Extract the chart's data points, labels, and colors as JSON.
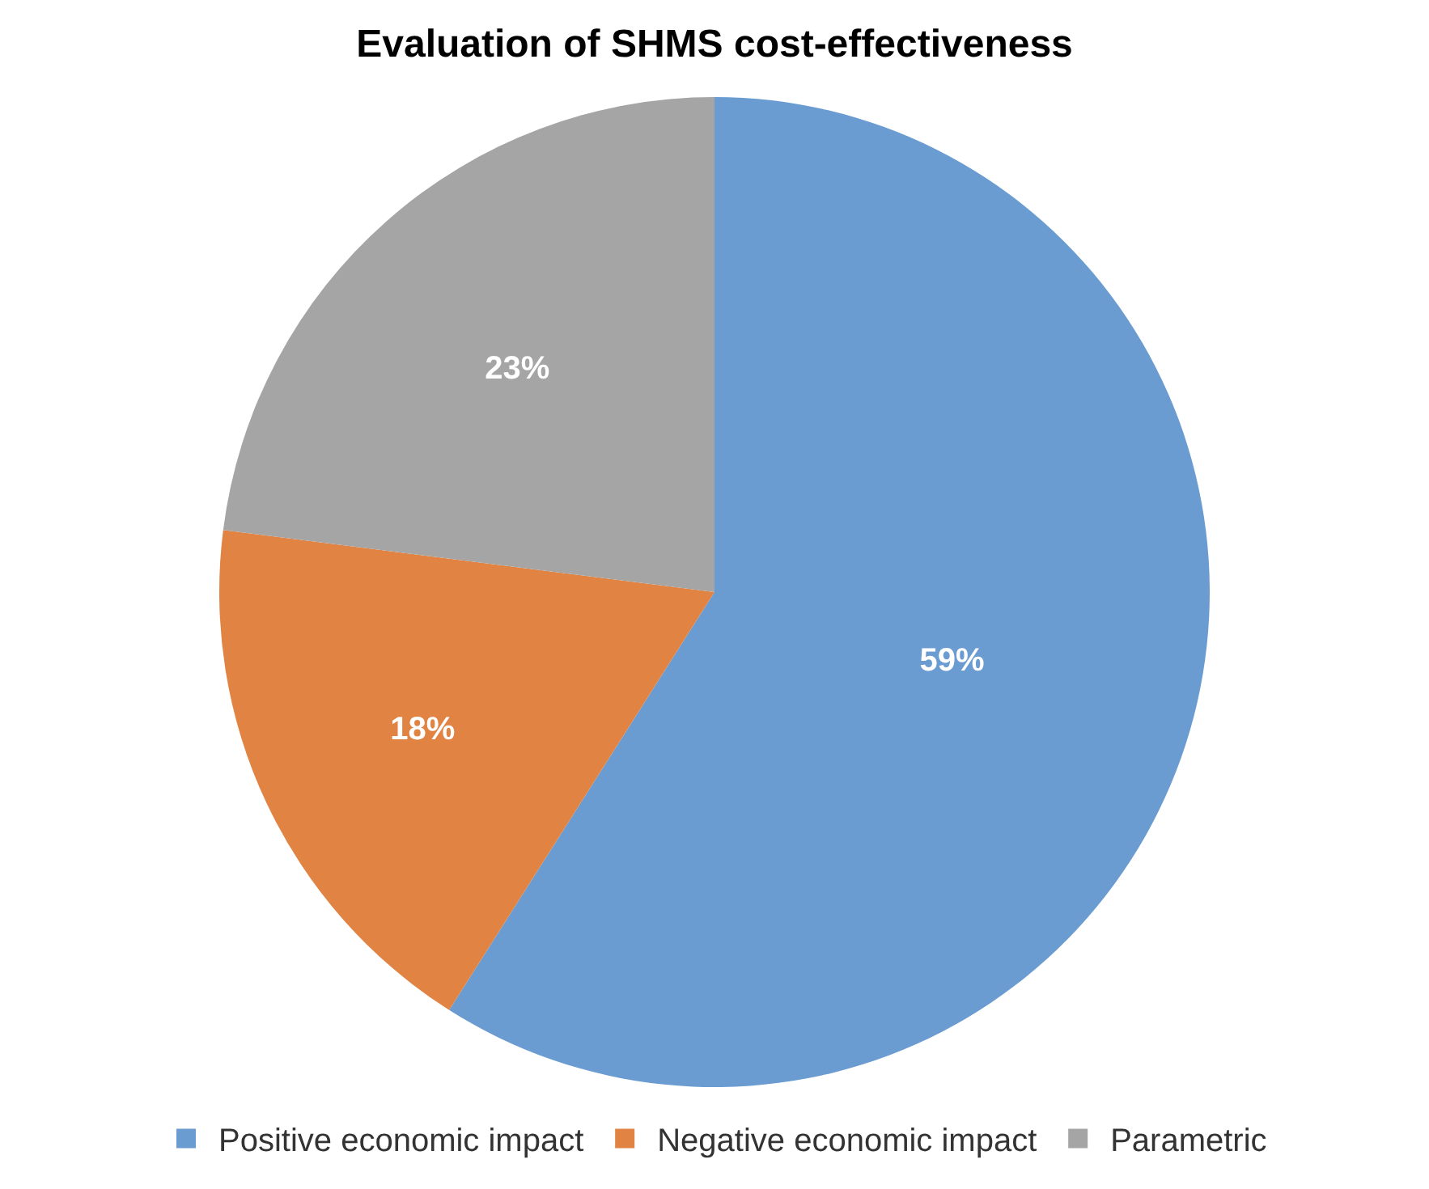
{
  "chart_data": {
    "type": "pie",
    "title": "Evaluation of SHMS cost-effectiveness",
    "categories": [
      "Positive economic impact",
      "Negative economic impact",
      "Parametric"
    ],
    "values": [
      59,
      18,
      23
    ],
    "colors": [
      "#6a9bd1",
      "#e08343",
      "#a5a5a5"
    ],
    "value_labels": [
      "59%",
      "18%",
      "23%"
    ],
    "legend": "bottom"
  }
}
